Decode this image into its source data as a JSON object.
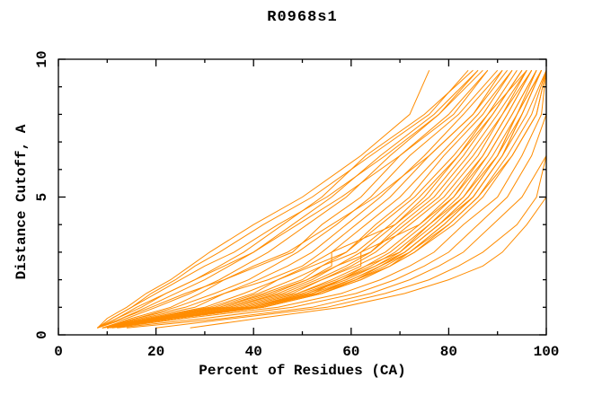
{
  "title": "R0968s1",
  "chart_data": {
    "type": "line",
    "title": "R0968s1",
    "xlabel": "Percent of Residues (CA)",
    "ylabel": "Distance Cutoff, A",
    "xlim": [
      0,
      100
    ],
    "ylim": [
      0,
      10
    ],
    "grid": false,
    "legend": "none",
    "x_major_ticks": [
      0,
      20,
      40,
      60,
      80,
      100
    ],
    "x_tick_labels": [
      "0",
      "20",
      "40",
      "60",
      "80",
      "100"
    ],
    "x_minor_ticks": [
      10,
      30,
      50,
      70,
      90
    ],
    "y_major_ticks": [
      0,
      5,
      10
    ],
    "y_tick_labels": [
      "0",
      "5",
      "10"
    ],
    "y_minor_ticks": [
      1,
      2,
      3,
      4,
      6,
      7,
      8,
      9
    ],
    "series_color": "#FF8C00",
    "axis_color": "#000000",
    "background_color": "#FFFFFF",
    "cutoffs": [
      0.25,
      0.6,
      1.0,
      1.5,
      2.0,
      2.5,
      3.0,
      4.0,
      5.0,
      6.5,
      8.0,
      9.6
    ],
    "series": [
      {
        "percents": [
          8,
          10,
          14,
          18,
          23,
          27,
          31,
          40,
          50,
          62,
          72,
          76
        ]
      },
      {
        "percents": [
          8,
          11,
          15,
          19,
          24,
          28,
          33,
          42,
          52,
          64,
          76,
          84
        ]
      },
      {
        "percents": [
          8,
          11,
          15,
          20,
          25,
          30,
          36,
          45,
          55,
          67,
          78,
          86
        ]
      },
      {
        "percents": [
          8,
          12,
          17,
          22,
          28,
          34,
          40,
          49,
          58,
          70,
          81,
          88
        ]
      },
      {
        "percents": [
          8,
          13,
          19,
          26,
          34,
          40,
          47,
          56,
          65,
          76,
          85,
          91
        ]
      },
      {
        "percents": [
          8,
          12,
          16,
          22,
          28,
          33,
          38,
          46,
          54,
          63,
          75,
          85
        ]
      },
      {
        "percents": [
          8,
          13,
          18,
          24,
          30,
          35,
          40,
          48,
          56,
          66,
          77,
          86
        ]
      },
      {
        "percents": [
          8,
          14,
          20,
          27,
          33,
          38,
          43,
          51,
          59,
          68,
          78,
          87
        ]
      },
      {
        "percents": [
          9,
          15,
          23,
          29,
          34,
          41,
          48,
          54,
          62,
          70,
          80,
          88
        ]
      },
      {
        "percents": [
          9,
          16,
          24,
          32,
          39,
          44,
          49,
          57,
          64,
          72,
          82,
          90
        ]
      },
      {
        "percents": [
          9,
          16,
          26,
          34,
          41,
          47,
          52,
          59,
          66,
          75,
          83,
          91
        ]
      },
      {
        "percents": [
          9,
          17,
          28,
          34,
          43,
          50,
          54,
          61,
          68,
          76,
          85,
          92
        ]
      },
      {
        "percents": [
          9,
          18,
          30,
          38,
          45,
          51,
          56,
          63,
          70,
          78,
          86,
          93
        ]
      },
      {
        "percents": [
          9,
          19,
          31,
          40,
          45,
          52,
          59,
          65,
          72,
          79,
          87,
          93
        ]
      },
      {
        "percents": [
          9,
          19,
          32,
          41,
          48,
          54,
          59,
          66,
          73,
          81,
          88,
          94
        ]
      },
      {
        "percents": [
          9,
          20,
          33,
          42,
          50,
          54,
          61,
          68,
          74,
          82,
          88,
          96
        ]
      },
      {
        "percents": [
          10,
          20,
          33,
          43,
          51,
          56,
          56,
          69,
          75,
          82,
          89,
          95
        ]
      },
      {
        "percents": [
          9,
          20,
          34,
          44,
          51,
          57,
          62,
          69,
          76,
          83,
          89,
          95
        ]
      },
      {
        "percents": [
          10,
          21,
          35,
          45,
          52,
          57,
          64,
          70,
          77,
          84,
          90,
          96
        ]
      },
      {
        "percents": [
          9,
          21,
          35,
          46,
          53,
          59,
          64,
          71,
          78,
          85,
          91,
          96
        ]
      },
      {
        "percents": [
          10,
          21,
          36,
          47,
          54,
          60,
          65,
          72,
          79,
          86,
          91,
          97
        ]
      },
      {
        "percents": [
          10,
          22,
          37,
          48,
          54,
          61,
          67,
          74,
          80,
          87,
          92,
          97
        ]
      },
      {
        "percents": [
          10,
          22,
          38,
          49,
          56,
          62,
          62,
          74,
          81,
          87,
          92,
          97
        ]
      },
      {
        "percents": [
          10,
          22,
          38,
          49,
          57,
          63,
          68,
          75,
          81,
          88,
          93,
          98
        ]
      },
      {
        "percents": [
          10,
          22,
          39,
          50,
          58,
          63,
          70,
          76,
          82,
          88,
          93,
          98
        ]
      },
      {
        "percents": [
          10,
          23,
          39,
          51,
          58,
          64,
          69,
          76,
          83,
          89,
          94,
          98
        ]
      },
      {
        "percents": [
          10,
          23,
          40,
          51,
          59,
          65,
          70,
          77,
          83,
          90,
          94,
          99
        ]
      },
      {
        "percents": [
          10,
          23,
          40,
          52,
          58,
          65,
          71,
          78,
          84,
          90,
          94,
          99
        ]
      },
      {
        "percents": [
          10,
          23,
          41,
          52,
          60,
          66,
          71,
          78,
          84,
          90,
          95,
          99
        ]
      },
      {
        "percents": [
          10,
          24,
          41,
          53,
          60,
          66,
          71,
          78,
          85,
          91,
          95,
          99
        ]
      },
      {
        "percents": [
          10,
          24,
          41,
          53,
          61,
          66,
          72,
          79,
          85,
          91,
          95,
          99
        ]
      },
      {
        "percents": [
          10,
          24,
          41,
          53,
          61,
          67,
          72,
          79,
          85,
          91,
          96,
          100
        ]
      },
      {
        "percents": [
          10,
          24,
          42,
          54,
          61,
          68,
          72,
          80,
          86,
          92,
          97,
          100
        ]
      },
      {
        "percents": [
          10,
          24,
          42,
          54,
          62,
          68,
          73,
          80,
          86,
          93,
          98,
          100
        ]
      },
      {
        "percents": [
          10,
          24,
          42,
          54,
          62,
          68,
          73,
          81,
          87,
          93,
          98,
          100
        ]
      },
      {
        "percents": [
          11,
          26,
          45,
          58,
          66,
          72,
          77,
          83,
          90,
          95,
          99,
          100
        ]
      },
      {
        "percents": [
          12,
          30,
          48,
          61,
          69,
          75,
          80,
          86,
          92,
          97,
          100,
          100
        ]
      },
      {
        "percents": [
          14,
          34,
          52,
          64,
          72,
          78,
          83,
          89,
          95,
          100,
          100,
          100
        ]
      },
      {
        "percents": [
          20,
          36,
          55,
          67,
          76,
          82,
          87,
          94,
          98,
          100,
          100,
          100
        ]
      },
      {
        "percents": [
          27,
          41,
          58,
          71,
          80,
          87,
          91,
          96,
          100,
          100,
          100,
          100
        ]
      }
    ]
  }
}
